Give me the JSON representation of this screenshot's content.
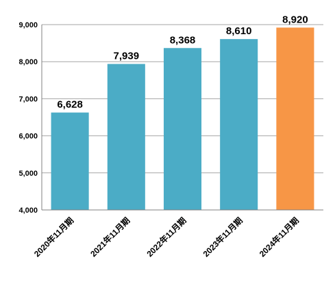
{
  "chart_data": {
    "type": "bar",
    "categories": [
      "2020年11月期",
      "2021年11月期",
      "2022年11月期",
      "2023年11月期",
      "2024年11月期"
    ],
    "values": [
      6628,
      7939,
      8368,
      8610,
      8920
    ],
    "data_labels": [
      "6,628",
      "7,939",
      "8,368",
      "8,610",
      "8,920"
    ],
    "ylim": [
      4000,
      9000
    ],
    "yticks": [
      4000,
      5000,
      6000,
      7000,
      8000,
      9000
    ],
    "ytick_labels": [
      "4,000",
      "5,000",
      "6,000",
      "7,000",
      "8,000",
      "9,000"
    ],
    "grid": true,
    "colors": {
      "bar": "#4BACC6",
      "highlight": "#F79646",
      "grid": "#A6A6A6",
      "axis": "#808080"
    },
    "highlight_index": 4,
    "title": "",
    "xlabel": "",
    "ylabel": ""
  }
}
